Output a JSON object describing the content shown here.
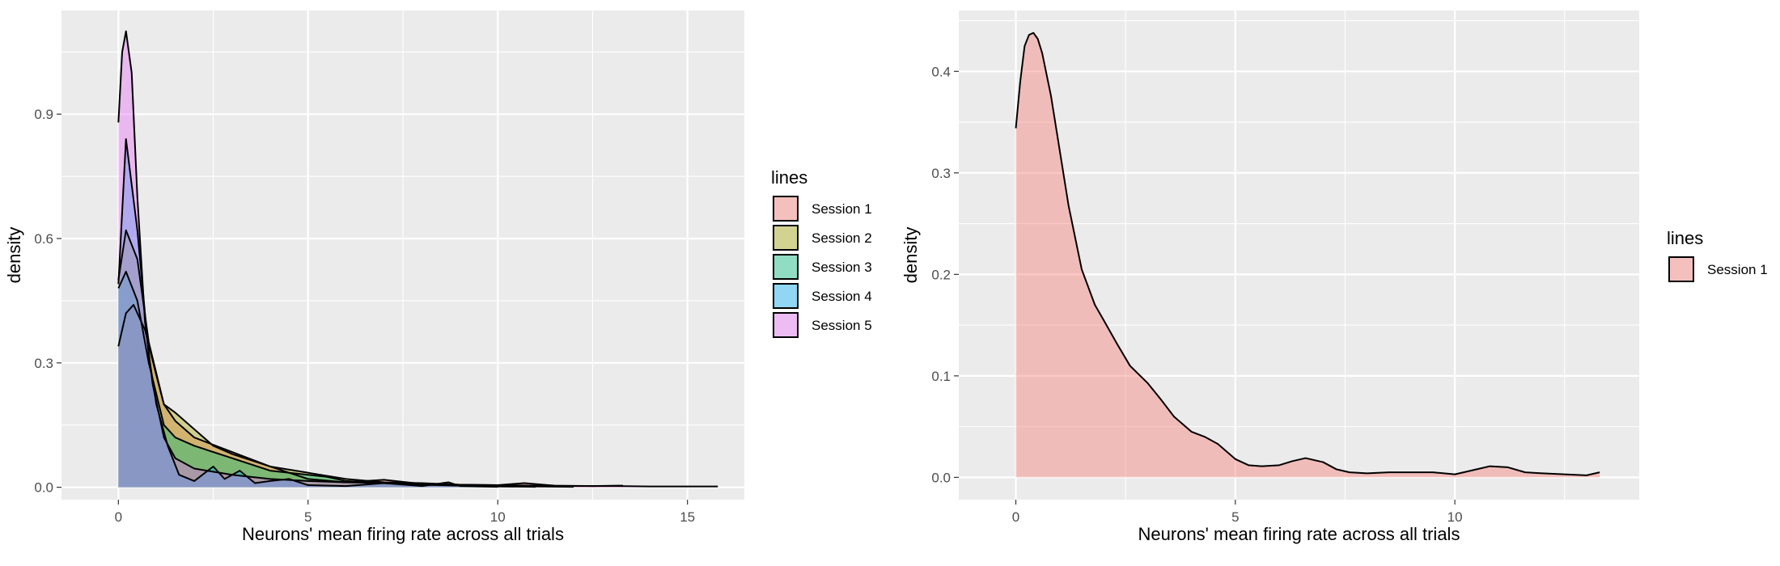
{
  "chart_data": [
    {
      "type": "area",
      "chart_kind": "density",
      "xlabel": "Neurons' mean firing rate across all trials",
      "ylabel": "density",
      "xlim": [
        -1.5,
        16.5
      ],
      "ylim": [
        -0.03,
        1.15
      ],
      "xticks": [
        0,
        5,
        10,
        15
      ],
      "xtick_labels": [
        "0",
        "5",
        "10",
        "15"
      ],
      "yticks": [
        0.0,
        0.3,
        0.6,
        0.9
      ],
      "ytick_labels": [
        "0.0",
        "0.3",
        "0.6",
        "0.9"
      ],
      "grid": true,
      "legend": {
        "title": "lines",
        "placement": "right"
      },
      "series": [
        {
          "name": "Session 1",
          "color": "#F8766D",
          "x": [
            0,
            0.2,
            0.4,
            0.7,
            1.0,
            1.2,
            1.5,
            2.0,
            3.0,
            4.0,
            5.0,
            6.0,
            7.0,
            8.0,
            9.0,
            10.0,
            10.7,
            11.5,
            12.5,
            13.3
          ],
          "y": [
            0.34,
            0.42,
            0.44,
            0.38,
            0.27,
            0.2,
            0.16,
            0.12,
            0.085,
            0.05,
            0.02,
            0.012,
            0.018,
            0.008,
            0.006,
            0.005,
            0.01,
            0.004,
            0.003,
            0.004
          ]
        },
        {
          "name": "Session 2",
          "color": "#A3A500",
          "x": [
            0,
            0.2,
            0.5,
            0.8,
            1.2,
            1.5,
            2.0,
            2.5,
            3.0,
            4.0,
            5.0,
            6.0,
            7.0,
            8.0,
            9.0,
            10.0,
            11.0,
            12.0
          ],
          "y": [
            0.5,
            0.62,
            0.55,
            0.35,
            0.2,
            0.18,
            0.14,
            0.1,
            0.08,
            0.05,
            0.035,
            0.02,
            0.012,
            0.01,
            0.006,
            0.004,
            0.002,
            0.001
          ]
        },
        {
          "name": "Session 3",
          "color": "#00BF7D",
          "x": [
            0,
            0.2,
            0.5,
            0.8,
            1.2,
            1.5,
            2.0,
            3.0,
            4.0,
            5.0,
            5.5,
            6.0,
            7.0,
            8.0,
            9.0,
            10.0,
            11.0
          ],
          "y": [
            0.48,
            0.52,
            0.45,
            0.3,
            0.15,
            0.12,
            0.1,
            0.07,
            0.04,
            0.03,
            0.025,
            0.015,
            0.01,
            0.006,
            0.004,
            0.002,
            0.001
          ]
        },
        {
          "name": "Session 4",
          "color": "#00B0F6",
          "x": [
            0,
            0.2,
            0.5,
            0.8,
            1.0,
            1.3,
            1.6,
            2.0,
            2.5,
            2.8,
            3.2,
            3.6,
            4.0,
            4.5,
            5.0,
            6.0,
            7.0,
            8.0,
            8.7,
            9.0,
            10.0
          ],
          "y": [
            0.49,
            0.84,
            0.62,
            0.32,
            0.2,
            0.1,
            0.03,
            0.015,
            0.05,
            0.02,
            0.04,
            0.01,
            0.015,
            0.02,
            0.005,
            0.003,
            0.01,
            0.003,
            0.012,
            0.003,
            0.001
          ]
        },
        {
          "name": "Session 5",
          "color": "#E76BF3",
          "x": [
            0,
            0.1,
            0.2,
            0.35,
            0.5,
            0.7,
            0.9,
            1.2,
            1.5,
            2.0,
            3.0,
            4.0,
            5.0,
            6.0,
            7.0,
            8.0,
            9.0,
            10.0,
            11.0,
            12.0,
            13.0,
            14.0,
            15.0,
            15.8
          ],
          "y": [
            0.88,
            1.05,
            1.1,
            1.0,
            0.7,
            0.4,
            0.25,
            0.12,
            0.07,
            0.045,
            0.03,
            0.02,
            0.015,
            0.012,
            0.01,
            0.008,
            0.006,
            0.005,
            0.004,
            0.003,
            0.003,
            0.002,
            0.002,
            0.002
          ]
        }
      ]
    },
    {
      "type": "area",
      "chart_kind": "density",
      "xlabel": "Neurons' mean firing rate across all trials",
      "ylabel": "density",
      "xlim": [
        -1.3,
        14.2
      ],
      "ylim": [
        -0.022,
        0.46
      ],
      "xticks": [
        0,
        5,
        10
      ],
      "xtick_labels": [
        "0",
        "5",
        "10"
      ],
      "yticks": [
        0.0,
        0.1,
        0.2,
        0.3,
        0.4
      ],
      "ytick_labels": [
        "0.0",
        "0.1",
        "0.2",
        "0.3",
        "0.4"
      ],
      "grid": true,
      "legend": {
        "title": "lines",
        "placement": "right"
      },
      "series": [
        {
          "name": "Session 1",
          "color": "#F8766D",
          "x": [
            0,
            0.1,
            0.2,
            0.3,
            0.4,
            0.5,
            0.6,
            0.8,
            1.0,
            1.2,
            1.5,
            1.8,
            2.0,
            2.3,
            2.6,
            3.0,
            3.3,
            3.6,
            4.0,
            4.3,
            4.6,
            5.0,
            5.3,
            5.6,
            6.0,
            6.3,
            6.6,
            7.0,
            7.3,
            7.6,
            8.0,
            8.5,
            9.0,
            9.5,
            10.0,
            10.5,
            10.8,
            11.2,
            11.6,
            12.0,
            12.5,
            13.0,
            13.3
          ],
          "y": [
            0.344,
            0.39,
            0.425,
            0.436,
            0.438,
            0.432,
            0.418,
            0.376,
            0.322,
            0.268,
            0.205,
            0.17,
            0.155,
            0.132,
            0.11,
            0.093,
            0.077,
            0.06,
            0.045,
            0.04,
            0.033,
            0.018,
            0.012,
            0.011,
            0.012,
            0.016,
            0.019,
            0.015,
            0.008,
            0.005,
            0.004,
            0.005,
            0.005,
            0.005,
            0.003,
            0.008,
            0.011,
            0.01,
            0.005,
            0.004,
            0.003,
            0.002,
            0.005
          ]
        }
      ]
    }
  ]
}
